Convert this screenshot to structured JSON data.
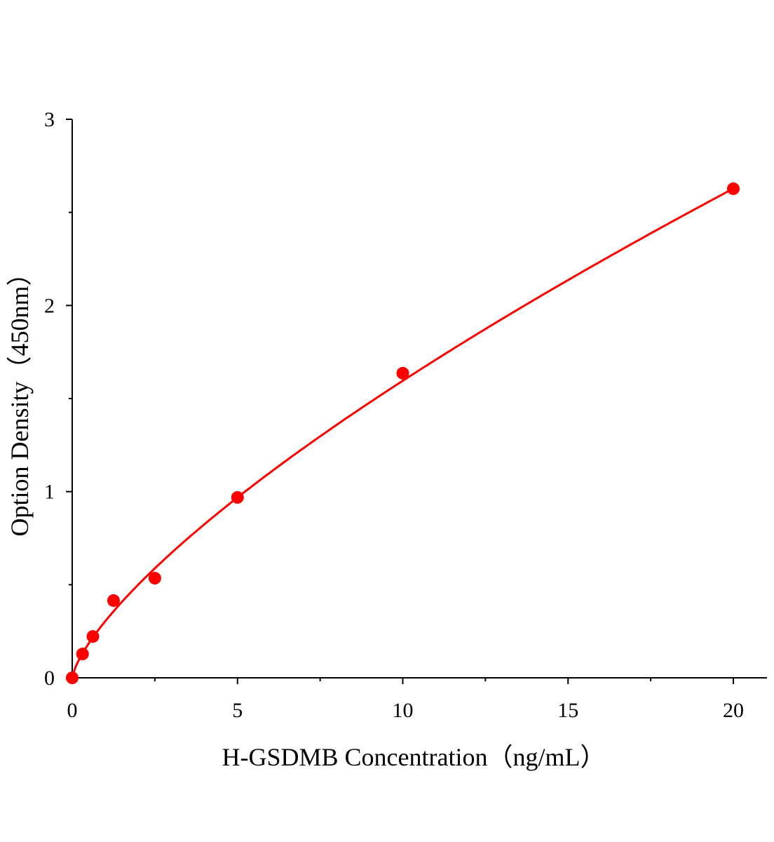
{
  "chart_data": {
    "type": "scatter",
    "title": "",
    "xlabel": "H-GSDMB Concentration（ng/mL）",
    "ylabel": "Option Density（450nm）",
    "xlim": [
      0,
      21
    ],
    "ylim": [
      0,
      3
    ],
    "xticks": [
      "0",
      "5",
      "10",
      "15",
      "20"
    ],
    "yticks": [
      "0",
      "1",
      "2",
      "3"
    ],
    "grid": false,
    "legend": "none",
    "color": "#ff0000",
    "series": [
      {
        "x": [
          0,
          0.3125,
          0.625,
          1.25,
          2.5,
          5,
          10,
          20
        ],
        "y": [
          0.0,
          0.128,
          0.222,
          0.415,
          0.535,
          0.969,
          1.636,
          2.627
        ]
      }
    ],
    "fit": {
      "type": "power",
      "a": 0.304,
      "b": 0.72
    }
  }
}
